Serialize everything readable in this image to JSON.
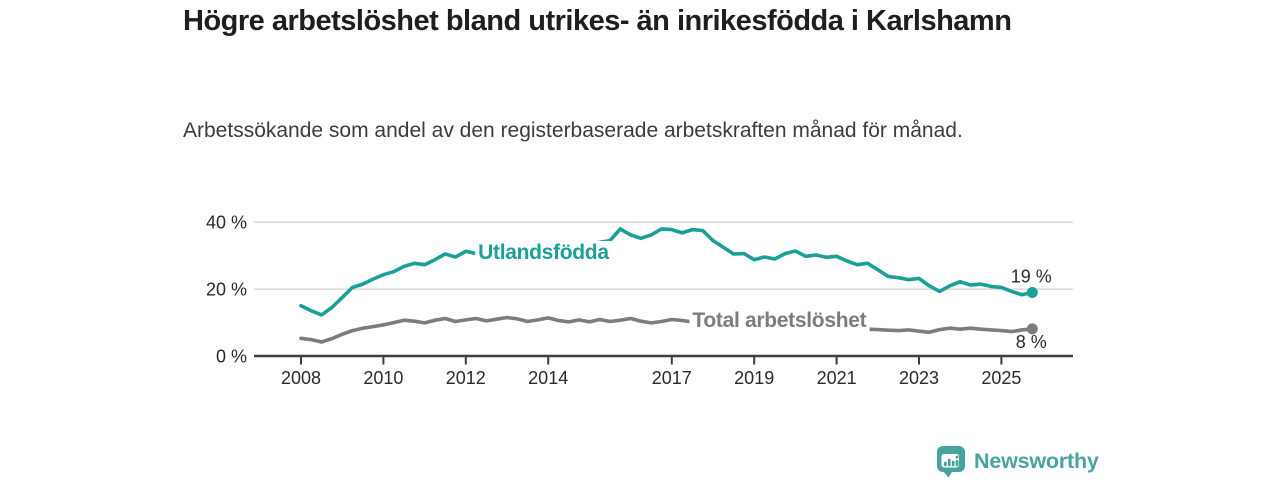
{
  "footer": {
    "brand": "Newsworthy"
  },
  "colors": {
    "teal": "#1ba098",
    "gray": "#7d7d7d",
    "axis": "#3d3d3d",
    "grid": "#d9d9d9",
    "tick_text": "#2a2a2a",
    "annotation_text": "#2d2d2d",
    "title_text": "#1e1e1e",
    "brand_teal": "#47a39b",
    "background": "#ffffff"
  },
  "chart_data": {
    "type": "line",
    "title": "Högre arbetslöshet bland utrikes- än inrikesfödda i Karlshamn",
    "subtitle": "Arbetssökande som andel av den registerbaserade arbetskraften månad för månad.",
    "xlabel": "",
    "ylabel": "",
    "ylim": [
      0,
      42
    ],
    "xlim": [
      2007.7,
      2026.5
    ],
    "grid": "horizontal-only",
    "legend_position": "inline-labels-on-lines",
    "x_ticks": {
      "years": [
        2008,
        2010,
        2012,
        2014,
        2017,
        2019,
        2021,
        2023,
        2025
      ],
      "labels": [
        "2008",
        "2010",
        "2012",
        "2014",
        "2017",
        "2019",
        "2021",
        "2023",
        "2025"
      ]
    },
    "y_ticks": {
      "values": [
        0,
        20,
        40
      ],
      "labels": [
        "0 %",
        "20 %",
        "40 %"
      ]
    },
    "series": [
      {
        "id": "utlandsfodda",
        "name": "Utlandsfödda",
        "color_key": "teal",
        "x_start": 2008.0,
        "x_step": 0.25,
        "values": [
          15.0,
          13.5,
          12.3,
          14.5,
          17.5,
          20.5,
          21.5,
          23.0,
          24.3,
          25.2,
          26.8,
          27.7,
          27.3,
          28.8,
          30.5,
          29.6,
          31.3,
          30.6,
          31.5,
          31.0,
          32.0,
          32.6,
          31.8,
          32.4,
          32.0,
          32.8,
          33.4,
          32.8,
          33.5,
          34.0,
          34.5,
          38.0,
          36.2,
          35.2,
          36.2,
          38.0,
          37.8,
          36.8,
          37.8,
          37.5,
          34.5,
          32.5,
          30.5,
          30.6,
          28.8,
          29.6,
          29.0,
          30.6,
          31.4,
          29.8,
          30.2,
          29.5,
          29.8,
          28.4,
          27.3,
          27.7,
          25.8,
          23.8,
          23.4,
          22.8,
          23.2,
          21.0,
          19.3,
          21.0,
          22.2,
          21.2,
          21.5,
          20.8,
          20.5,
          19.3,
          18.3,
          19.0
        ],
        "label": {
          "text": "Utlandsfödda",
          "x": 2012.3,
          "y": 31.1
        },
        "end_label": "19 %",
        "end_label_pos": "above"
      },
      {
        "id": "total",
        "name": "Total arbetslöshet",
        "color_key": "gray",
        "x_start": 2008.0,
        "x_step": 0.25,
        "values": [
          5.3,
          4.9,
          4.2,
          5.2,
          6.5,
          7.6,
          8.3,
          8.8,
          9.3,
          10.0,
          10.7,
          10.4,
          9.9,
          10.7,
          11.2,
          10.3,
          10.8,
          11.2,
          10.5,
          11.0,
          11.5,
          11.1,
          10.3,
          10.8,
          11.4,
          10.6,
          10.2,
          10.8,
          10.2,
          10.9,
          10.3,
          10.7,
          11.2,
          10.4,
          9.9,
          10.3,
          10.9,
          10.6,
          10.2,
          10.5,
          10.0,
          9.6,
          9.3,
          9.0,
          8.7,
          8.9,
          8.6,
          8.8,
          9.2,
          9.6,
          9.4,
          9.0,
          8.8,
          8.5,
          8.2,
          8.0,
          7.9,
          7.7,
          7.6,
          7.8,
          7.4,
          7.1,
          7.9,
          8.3,
          8.0,
          8.3,
          8.0,
          7.8,
          7.6,
          7.3,
          7.8,
          8.1
        ],
        "label": {
          "text": "Total arbetslöshet",
          "x": 2017.5,
          "y": 10.8
        },
        "end_label": "8 %",
        "end_label_pos": "below"
      }
    ]
  }
}
